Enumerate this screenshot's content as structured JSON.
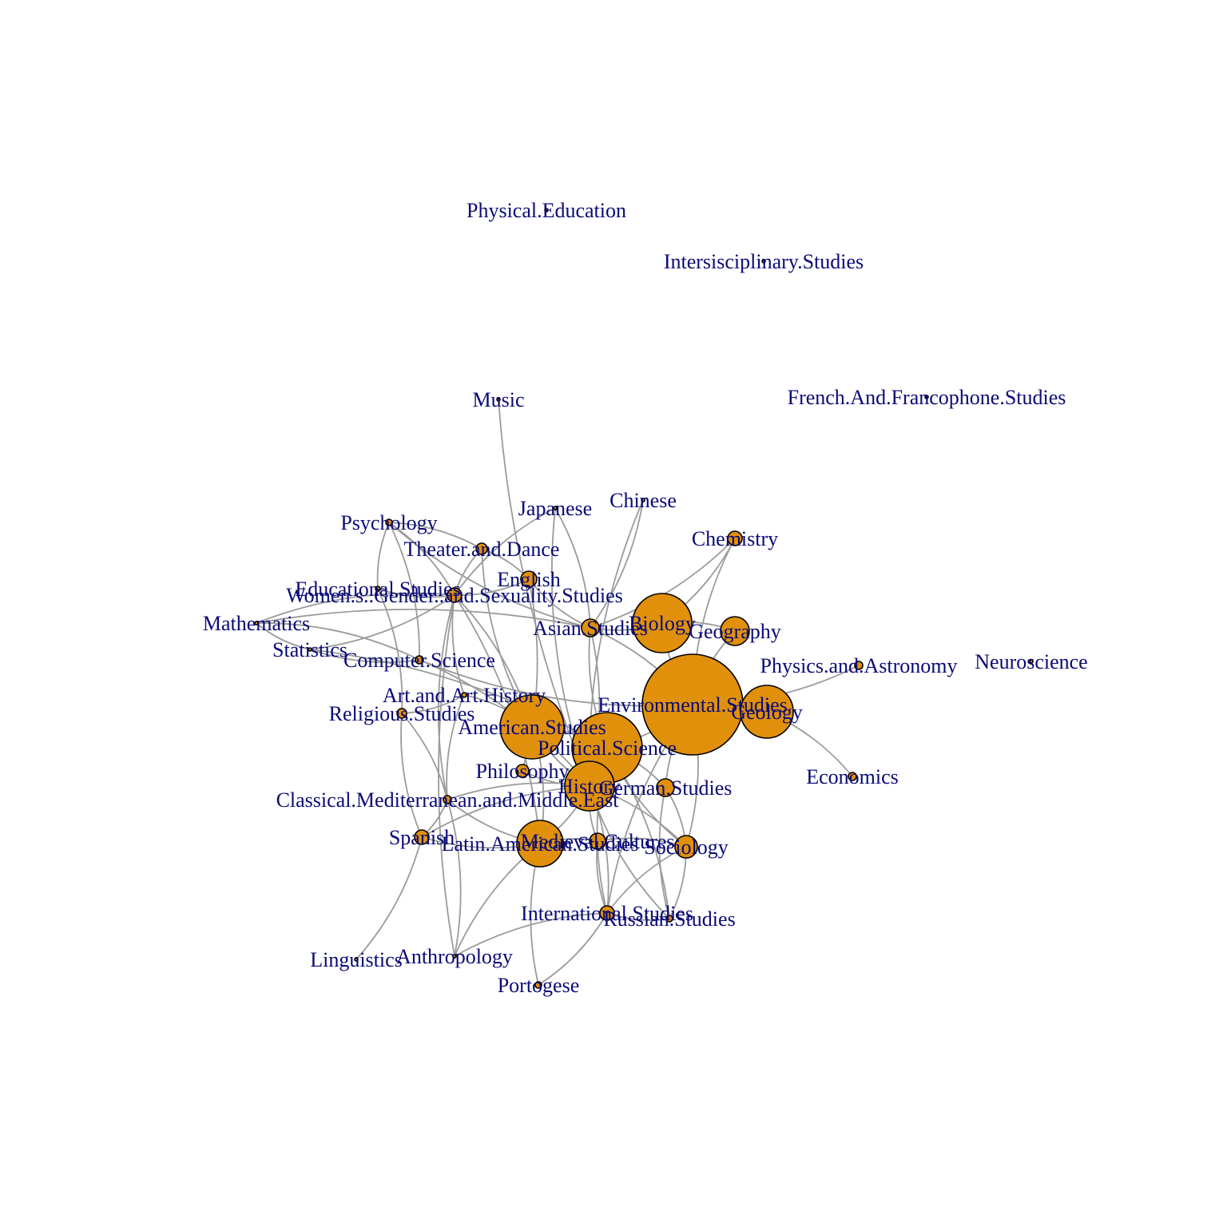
{
  "colors": {
    "node_fill": "#e0900a",
    "node_stroke": "#000000",
    "edge": "#9b9b9b",
    "label": "#0a0a78"
  },
  "nodes": [
    {
      "id": "Physical.Education"
    },
    {
      "id": "Intersisciplinary.Studies"
    },
    {
      "id": "French.And.Francophone.Studies"
    },
    {
      "id": "Music"
    },
    {
      "id": "Japanese"
    },
    {
      "id": "Chinese"
    },
    {
      "id": "Psychology"
    },
    {
      "id": "Chemistry"
    },
    {
      "id": "Theater.and.Dance"
    },
    {
      "id": "English"
    },
    {
      "id": "Educational.Studies"
    },
    {
      "id": "Women.s..Gender..and.Sexuality.Studies"
    },
    {
      "id": "Mathematics"
    },
    {
      "id": "Biology"
    },
    {
      "id": "Asian.Studies"
    },
    {
      "id": "Geography"
    },
    {
      "id": "Statistics"
    },
    {
      "id": "Computer.Science"
    },
    {
      "id": "Physics.and.Astronomy"
    },
    {
      "id": "Neuroscience"
    },
    {
      "id": "Art.and.Art.History"
    },
    {
      "id": "Environmental.Studies"
    },
    {
      "id": "Geology"
    },
    {
      "id": "Religious.Studies"
    },
    {
      "id": "American.Studies"
    },
    {
      "id": "Political.Science"
    },
    {
      "id": "Philosophy"
    },
    {
      "id": "Economics"
    },
    {
      "id": "History"
    },
    {
      "id": "German.Studies"
    },
    {
      "id": "Classical.Mediterranean.and.Middle.East"
    },
    {
      "id": "Spanish"
    },
    {
      "id": "Latin.American.Studies"
    },
    {
      "id": "Medieval.Cultures"
    },
    {
      "id": "Sociology"
    },
    {
      "id": "Russian.Studies"
    },
    {
      "id": "International.Studies"
    },
    {
      "id": "Linguistics"
    },
    {
      "id": "Anthropology"
    },
    {
      "id": "Portogese"
    }
  ],
  "edges": [
    [
      "Music",
      "History"
    ],
    [
      "Psychology",
      "Women.s..Gender..and.Sexuality.Studies"
    ],
    [
      "Psychology",
      "Educational.Studies"
    ],
    [
      "Psychology",
      "Theater.and.Dance"
    ],
    [
      "Psychology",
      "Asian.Studies"
    ],
    [
      "Psychology",
      "Computer.Science"
    ],
    [
      "Theater.and.Dance",
      "Women.s..Gender..and.Sexuality.Studies"
    ],
    [
      "Theater.and.Dance",
      "English"
    ],
    [
      "Theater.and.Dance",
      "American.Studies"
    ],
    [
      "English",
      "Women.s..Gender..and.Sexuality.Studies"
    ],
    [
      "English",
      "Asian.Studies"
    ],
    [
      "English",
      "Philosophy"
    ],
    [
      "Japanese",
      "Women.s..Gender..and.Sexuality.Studies"
    ],
    [
      "Japanese",
      "Asian.Studies"
    ],
    [
      "Japanese",
      "History"
    ],
    [
      "Chinese",
      "Asian.Studies"
    ],
    [
      "Chinese",
      "History"
    ],
    [
      "Chemistry",
      "Biology"
    ],
    [
      "Chemistry",
      "Environmental.Studies"
    ],
    [
      "Chemistry",
      "Asian.Studies"
    ],
    [
      "Educational.Studies",
      "Women.s..Gender..and.Sexuality.Studies"
    ],
    [
      "Educational.Studies",
      "Religious.Studies"
    ],
    [
      "Women.s..Gender..and.Sexuality.Studies",
      "Mathematics"
    ],
    [
      "Women.s..Gender..and.Sexuality.Studies",
      "Statistics"
    ],
    [
      "Women.s..Gender..and.Sexuality.Studies",
      "Art.and.Art.History"
    ],
    [
      "Women.s..Gender..and.Sexuality.Studies",
      "American.Studies"
    ],
    [
      "Women.s..Gender..and.Sexuality.Studies",
      "Classical.Mediterranean.and.Middle.East"
    ],
    [
      "Women.s..Gender..and.Sexuality.Studies",
      "Latin.American.Studies"
    ],
    [
      "Women.s..Gender..and.Sexuality.Studies",
      "Anthropology"
    ],
    [
      "Mathematics",
      "Computer.Science"
    ],
    [
      "Mathematics",
      "Statistics"
    ],
    [
      "Mathematics",
      "Asian.Studies"
    ],
    [
      "Statistics",
      "Computer.Science"
    ],
    [
      "Statistics",
      "Political.Science"
    ],
    [
      "Computer.Science",
      "Environmental.Studies"
    ],
    [
      "Computer.Science",
      "History"
    ],
    [
      "Asian.Studies",
      "Political.Science"
    ],
    [
      "Asian.Studies",
      "History"
    ],
    [
      "Asian.Studies",
      "Biology"
    ],
    [
      "Asian.Studies",
      "Environmental.Studies"
    ],
    [
      "Biology",
      "Environmental.Studies"
    ],
    [
      "Biology",
      "Geography"
    ],
    [
      "Geography",
      "Environmental.Studies"
    ],
    [
      "Environmental.Studies",
      "Geology"
    ],
    [
      "Environmental.Studies",
      "Physics.and.Astronomy"
    ],
    [
      "Environmental.Studies",
      "Political.Science"
    ],
    [
      "Environmental.Studies",
      "German.Studies"
    ],
    [
      "Environmental.Studies",
      "Sociology"
    ],
    [
      "Environmental.Studies",
      "International.Studies"
    ],
    [
      "Geology",
      "Economics"
    ],
    [
      "Religious.Studies",
      "Art.and.Art.History"
    ],
    [
      "Religious.Studies",
      "Classical.Mediterranean.and.Middle.East"
    ],
    [
      "Religious.Studies",
      "Spanish"
    ],
    [
      "Art.and.Art.History",
      "American.Studies"
    ],
    [
      "Art.and.Art.History",
      "Classical.Mediterranean.and.Middle.East"
    ],
    [
      "American.Studies",
      "Political.Science"
    ],
    [
      "American.Studies",
      "History"
    ],
    [
      "American.Studies",
      "Latin.American.Studies"
    ],
    [
      "Political.Science",
      "History"
    ],
    [
      "Political.Science",
      "German.Studies"
    ],
    [
      "Political.Science",
      "Sociology"
    ],
    [
      "Political.Science",
      "Russian.Studies"
    ],
    [
      "Political.Science",
      "International.Studies"
    ],
    [
      "History",
      "Philosophy"
    ],
    [
      "History",
      "Classical.Mediterranean.and.Middle.East"
    ],
    [
      "History",
      "Latin.American.Studies"
    ],
    [
      "History",
      "Medieval.Cultures"
    ],
    [
      "History",
      "Sociology"
    ],
    [
      "History",
      "Russian.Studies"
    ],
    [
      "History",
      "International.Studies"
    ],
    [
      "History",
      "Spanish"
    ],
    [
      "German.Studies",
      "Sociology"
    ],
    [
      "German.Studies",
      "Russian.Studies"
    ],
    [
      "Classical.Mediterranean.and.Middle.East",
      "Spanish"
    ],
    [
      "Classical.Mediterranean.and.Middle.East",
      "Latin.American.Studies"
    ],
    [
      "Classical.Mediterranean.and.Middle.East",
      "Anthropology"
    ],
    [
      "Spanish",
      "Latin.American.Studies"
    ],
    [
      "Spanish",
      "Linguistics"
    ],
    [
      "Latin.American.Studies",
      "Portogese"
    ],
    [
      "Latin.American.Studies",
      "Medieval.Cultures"
    ],
    [
      "Latin.American.Studies",
      "Anthropology"
    ],
    [
      "Medieval.Cultures",
      "Sociology"
    ],
    [
      "Medieval.Cultures",
      "International.Studies"
    ],
    [
      "Sociology",
      "Russian.Studies"
    ],
    [
      "Sociology",
      "International.Studies"
    ],
    [
      "Russian.Studies",
      "International.Studies"
    ],
    [
      "International.Studies",
      "Anthropology"
    ],
    [
      "International.Studies",
      "Portogese"
    ]
  ]
}
